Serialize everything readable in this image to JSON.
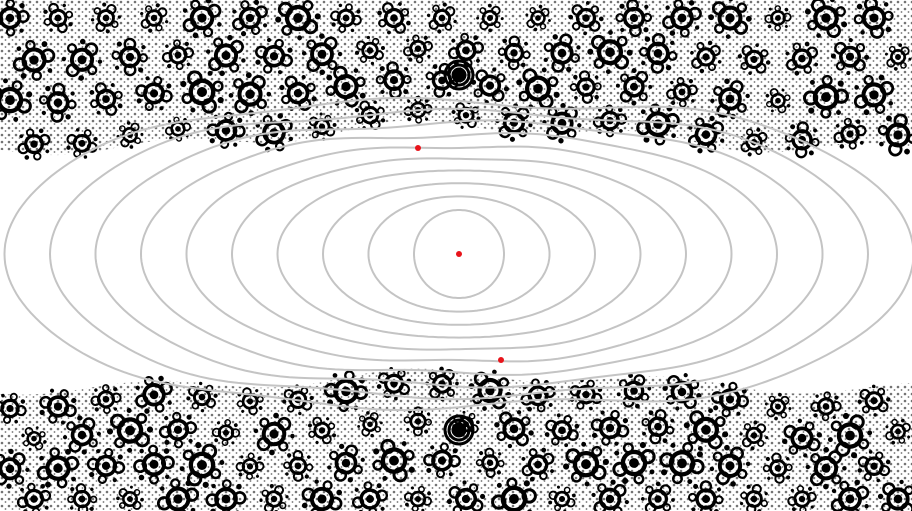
{
  "figure": {
    "description_free": true,
    "colors": {
      "background": "#ffffff",
      "fractal": "#000000",
      "level_curves": "#c4c4c4",
      "marked_points": "#e8141b"
    },
    "level_curve_count": 10,
    "marked_point_count": 3
  }
}
